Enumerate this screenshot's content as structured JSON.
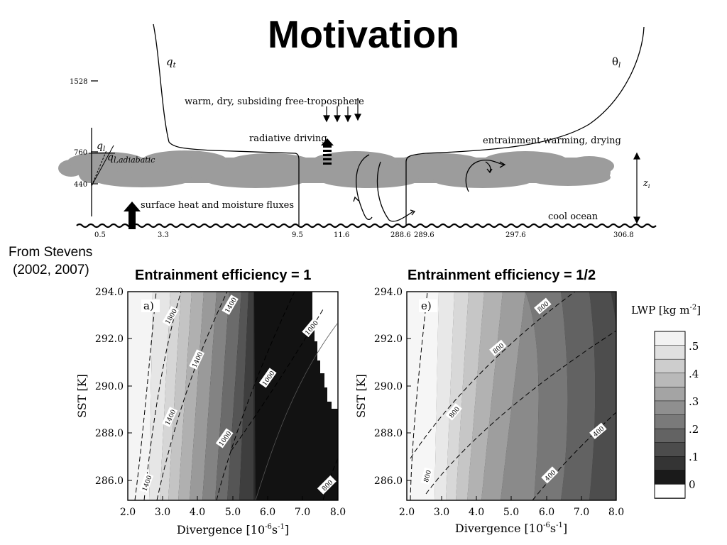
{
  "slide": {
    "title": "Motivation",
    "source_line1": "From Stevens",
    "source_line2": "(2002, 2007)"
  },
  "schematic": {
    "label_qt": "q",
    "label_qt_sub": "t",
    "label_theta": "θ",
    "label_theta_sub": "l",
    "label_ql": "q",
    "label_ql_sub": "l",
    "label_qladi": "q",
    "label_qladi_sub": "l,adiabatic",
    "label_zi": "z",
    "label_zi_sub": "i",
    "label_subsiding": "warm, dry, subsiding free-troposphere",
    "label_radiative": "radiative driving",
    "label_entrain": "entrainment warming, drying",
    "label_surface": "surface heat and moisture fluxes",
    "label_ocean": "cool ocean",
    "y_ticks": [
      {
        "label": "1528"
      },
      {
        "label": "760"
      },
      {
        "label": "440"
      }
    ],
    "x_ticks": [
      "0.5",
      "3.3",
      "9.5",
      "11.6",
      "288.6",
      "289.6",
      "297.6",
      "306.8"
    ]
  },
  "panels": [
    {
      "title": "Entrainment efficiency = 1",
      "panel_label": "a)",
      "xlabel_main": "Divergence [10",
      "xlabel_sup": "-6",
      "xlabel_unit": "s",
      "xlabel_sup2": "-1",
      "xlabel_close": "]",
      "ylabel": "SST [K]",
      "xticks": [
        "2.0",
        "3.0",
        "4.0",
        "5.0",
        "6.0",
        "7.0",
        "8.0"
      ],
      "yticks": [
        "294.0",
        "292.0",
        "290.0",
        "288.0",
        "286.0"
      ],
      "contour_labels": [
        "1800",
        "1400",
        "1400",
        "1400",
        "1000",
        "1000",
        "1000",
        "800",
        "1400"
      ]
    },
    {
      "title": "Entrainment efficiency = 1/2",
      "panel_label": "e)",
      "xlabel_main": "Divergence [10",
      "xlabel_sup": "-6",
      "xlabel_unit": "s",
      "xlabel_sup2": "-1",
      "xlabel_close": "]",
      "ylabel": "SST [K]",
      "xticks": [
        "2.0",
        "3.0",
        "4.0",
        "5.0",
        "6.0",
        "7.0",
        "8.0"
      ],
      "yticks": [
        "294.0",
        "292.0",
        "290.0",
        "288.0",
        "286.0"
      ],
      "contour_labels": [
        "800",
        "800",
        "800",
        "400",
        "400",
        "800"
      ]
    }
  ],
  "colorbar": {
    "title_main": "LWP [kg m",
    "title_sup": "-2",
    "title_close": "]",
    "labels": [
      ".5",
      ".4",
      ".3",
      ".2",
      ".1",
      "0"
    ],
    "colors": [
      "#f2f2f2",
      "#e0e0e0",
      "#cdcdcd",
      "#b9b9b9",
      "#a4a4a4",
      "#8f8f8f",
      "#7a7a7a",
      "#636363",
      "#4c4c4c",
      "#343434",
      "#1a1a1a",
      "#ffffff"
    ]
  }
}
